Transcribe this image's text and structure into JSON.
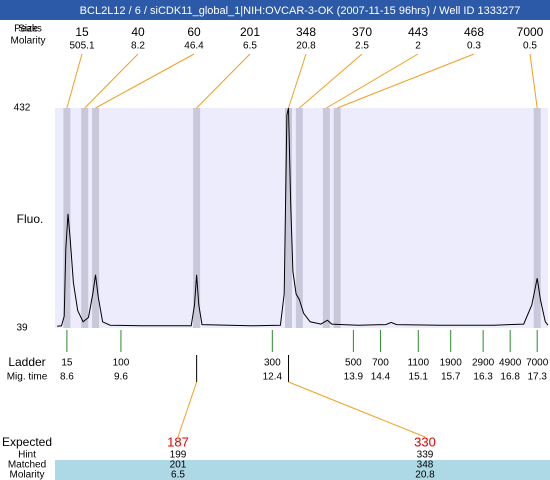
{
  "chart_data": {
    "type": "electropherogram",
    "title": "BCL2L12 / 6 / siCDK11_global_1|NIH:OVCAR-3-OK (2007-11-15 96hrs) / Well ID 1333277",
    "peak_labels": {
      "size": "Size",
      "peaks": "Peaks",
      "molarity": "Molarity"
    },
    "peaks": {
      "sizes": [
        15,
        40,
        60,
        201,
        348,
        370,
        443,
        468,
        7000
      ],
      "molarities": [
        505.1,
        8.2,
        46.4,
        6.5,
        20.8,
        2.5,
        2,
        0.3,
        0.5
      ],
      "times": [
        8.6,
        8.93,
        9.13,
        11.0,
        12.7,
        12.9,
        13.4,
        13.6,
        17.3
      ]
    },
    "y_label": "Fluo.",
    "ylim": [
      39,
      432
    ],
    "yticks": [
      39,
      432
    ],
    "xlim": [
      8.38,
      17.5
    ],
    "trace": {
      "color": "#000000",
      "x": [
        8.42,
        8.5,
        8.55,
        8.58,
        8.62,
        8.66,
        8.72,
        8.8,
        8.9,
        9.0,
        9.08,
        9.13,
        9.18,
        9.26,
        9.4,
        10.0,
        10.9,
        10.96,
        11.0,
        11.04,
        11.1,
        12.0,
        12.55,
        12.62,
        12.67,
        12.7,
        12.74,
        12.78,
        12.84,
        12.9,
        12.98,
        13.1,
        13.3,
        13.42,
        13.5,
        13.7,
        14.0,
        14.5,
        14.6,
        14.7,
        15.5,
        16.5,
        17.05,
        17.2,
        17.3,
        17.36,
        17.45,
        17.5
      ],
      "y": [
        42,
        43,
        60,
        180,
        243,
        200,
        120,
        70,
        50,
        58,
        100,
        134,
        95,
        50,
        44,
        43,
        43,
        80,
        134,
        80,
        45,
        43,
        44,
        100,
        420,
        432,
        260,
        140,
        100,
        90,
        65,
        50,
        46,
        53,
        46,
        45,
        44,
        45,
        49,
        45,
        44,
        44,
        46,
        80,
        128,
        90,
        50,
        44
      ]
    },
    "ladder": {
      "label": "Ladder",
      "time_label": "Mig. time",
      "sizes": [
        15,
        100,
        300,
        500,
        700,
        1100,
        1900,
        2900,
        4900,
        7000
      ],
      "times": [
        8.6,
        9.6,
        12.4,
        13.9,
        14.4,
        15.1,
        15.7,
        16.3,
        16.8,
        17.3
      ]
    },
    "expected": {
      "labels": {
        "expected": "Expected",
        "hint": "Hint",
        "matched": "Matched",
        "molarity": "Molarity"
      },
      "expected": [
        187,
        330
      ],
      "hint": [
        199,
        339
      ],
      "matched": [
        201,
        348
      ],
      "molarity": [
        6.5,
        20.8
      ]
    }
  }
}
